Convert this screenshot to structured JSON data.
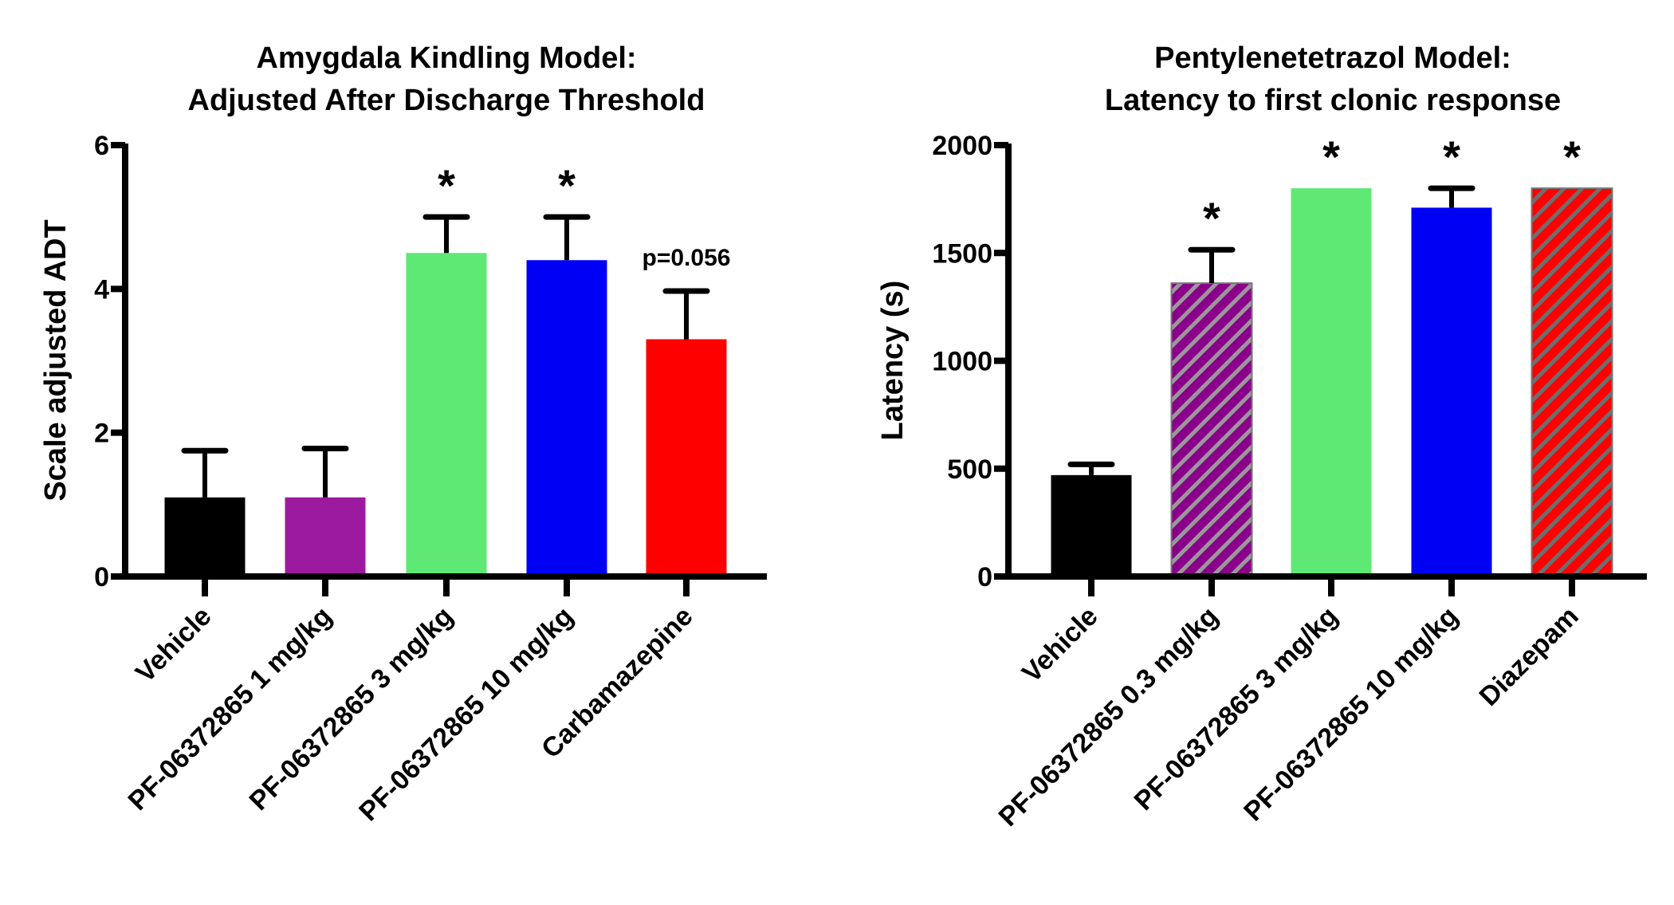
{
  "chart_data": [
    {
      "type": "bar",
      "title": [
        "Amygdala Kindling Model:",
        "Adjusted After Discharge Threshold"
      ],
      "xlabel": "",
      "ylabel": "Scale adjusted ADT",
      "ylim": [
        0,
        6
      ],
      "yticks": [
        0,
        2,
        4,
        6
      ],
      "ytick_labels": [
        "0",
        "2",
        "4",
        "6"
      ],
      "categories": [
        "Vehicle",
        "PF-06372865 1 mg/kg",
        "PF-06372865 3 mg/kg",
        "PF-06372865 10 mg/kg",
        "Carbamazepine"
      ],
      "values": [
        1.1,
        1.1,
        4.5,
        4.4,
        3.3
      ],
      "error_upper": [
        1.75,
        1.78,
        5.0,
        5.0,
        3.97
      ],
      "colors": [
        "#000000",
        "#9c1aa0",
        "#5ee874",
        "#0000f5",
        "#ff0000"
      ],
      "hatched": [
        false,
        false,
        false,
        false,
        false
      ],
      "annotations": [
        "",
        "",
        "*",
        "*",
        "p=0.056"
      ],
      "grid": false
    },
    {
      "type": "bar",
      "title": [
        "Pentylenetetrazol Model:",
        "Latency to first clonic response"
      ],
      "xlabel": "",
      "ylabel": "Latency (s)",
      "ylim": [
        0,
        2000
      ],
      "yticks": [
        0,
        500,
        1000,
        1500,
        2000
      ],
      "ytick_labels": [
        "0",
        "500",
        "1000",
        "1500",
        "2000"
      ],
      "categories": [
        "Vehicle",
        "PF-06372865 0.3 mg/kg",
        "PF-06372865 3 mg/kg",
        "PF-06372865 10 mg/kg",
        "Diazepam"
      ],
      "values": [
        470,
        1360,
        1800,
        1710,
        1800
      ],
      "error_upper": [
        520,
        1515,
        null,
        1800,
        null
      ],
      "colors": [
        "#000000",
        "#8a008a",
        "#5ee874",
        "#0000f5",
        "#ff0000"
      ],
      "hatched": [
        false,
        true,
        false,
        false,
        true
      ],
      "hatch_color": "#888888",
      "annotations": [
        "",
        "*",
        "*",
        "*",
        "*"
      ],
      "grid": false
    }
  ]
}
